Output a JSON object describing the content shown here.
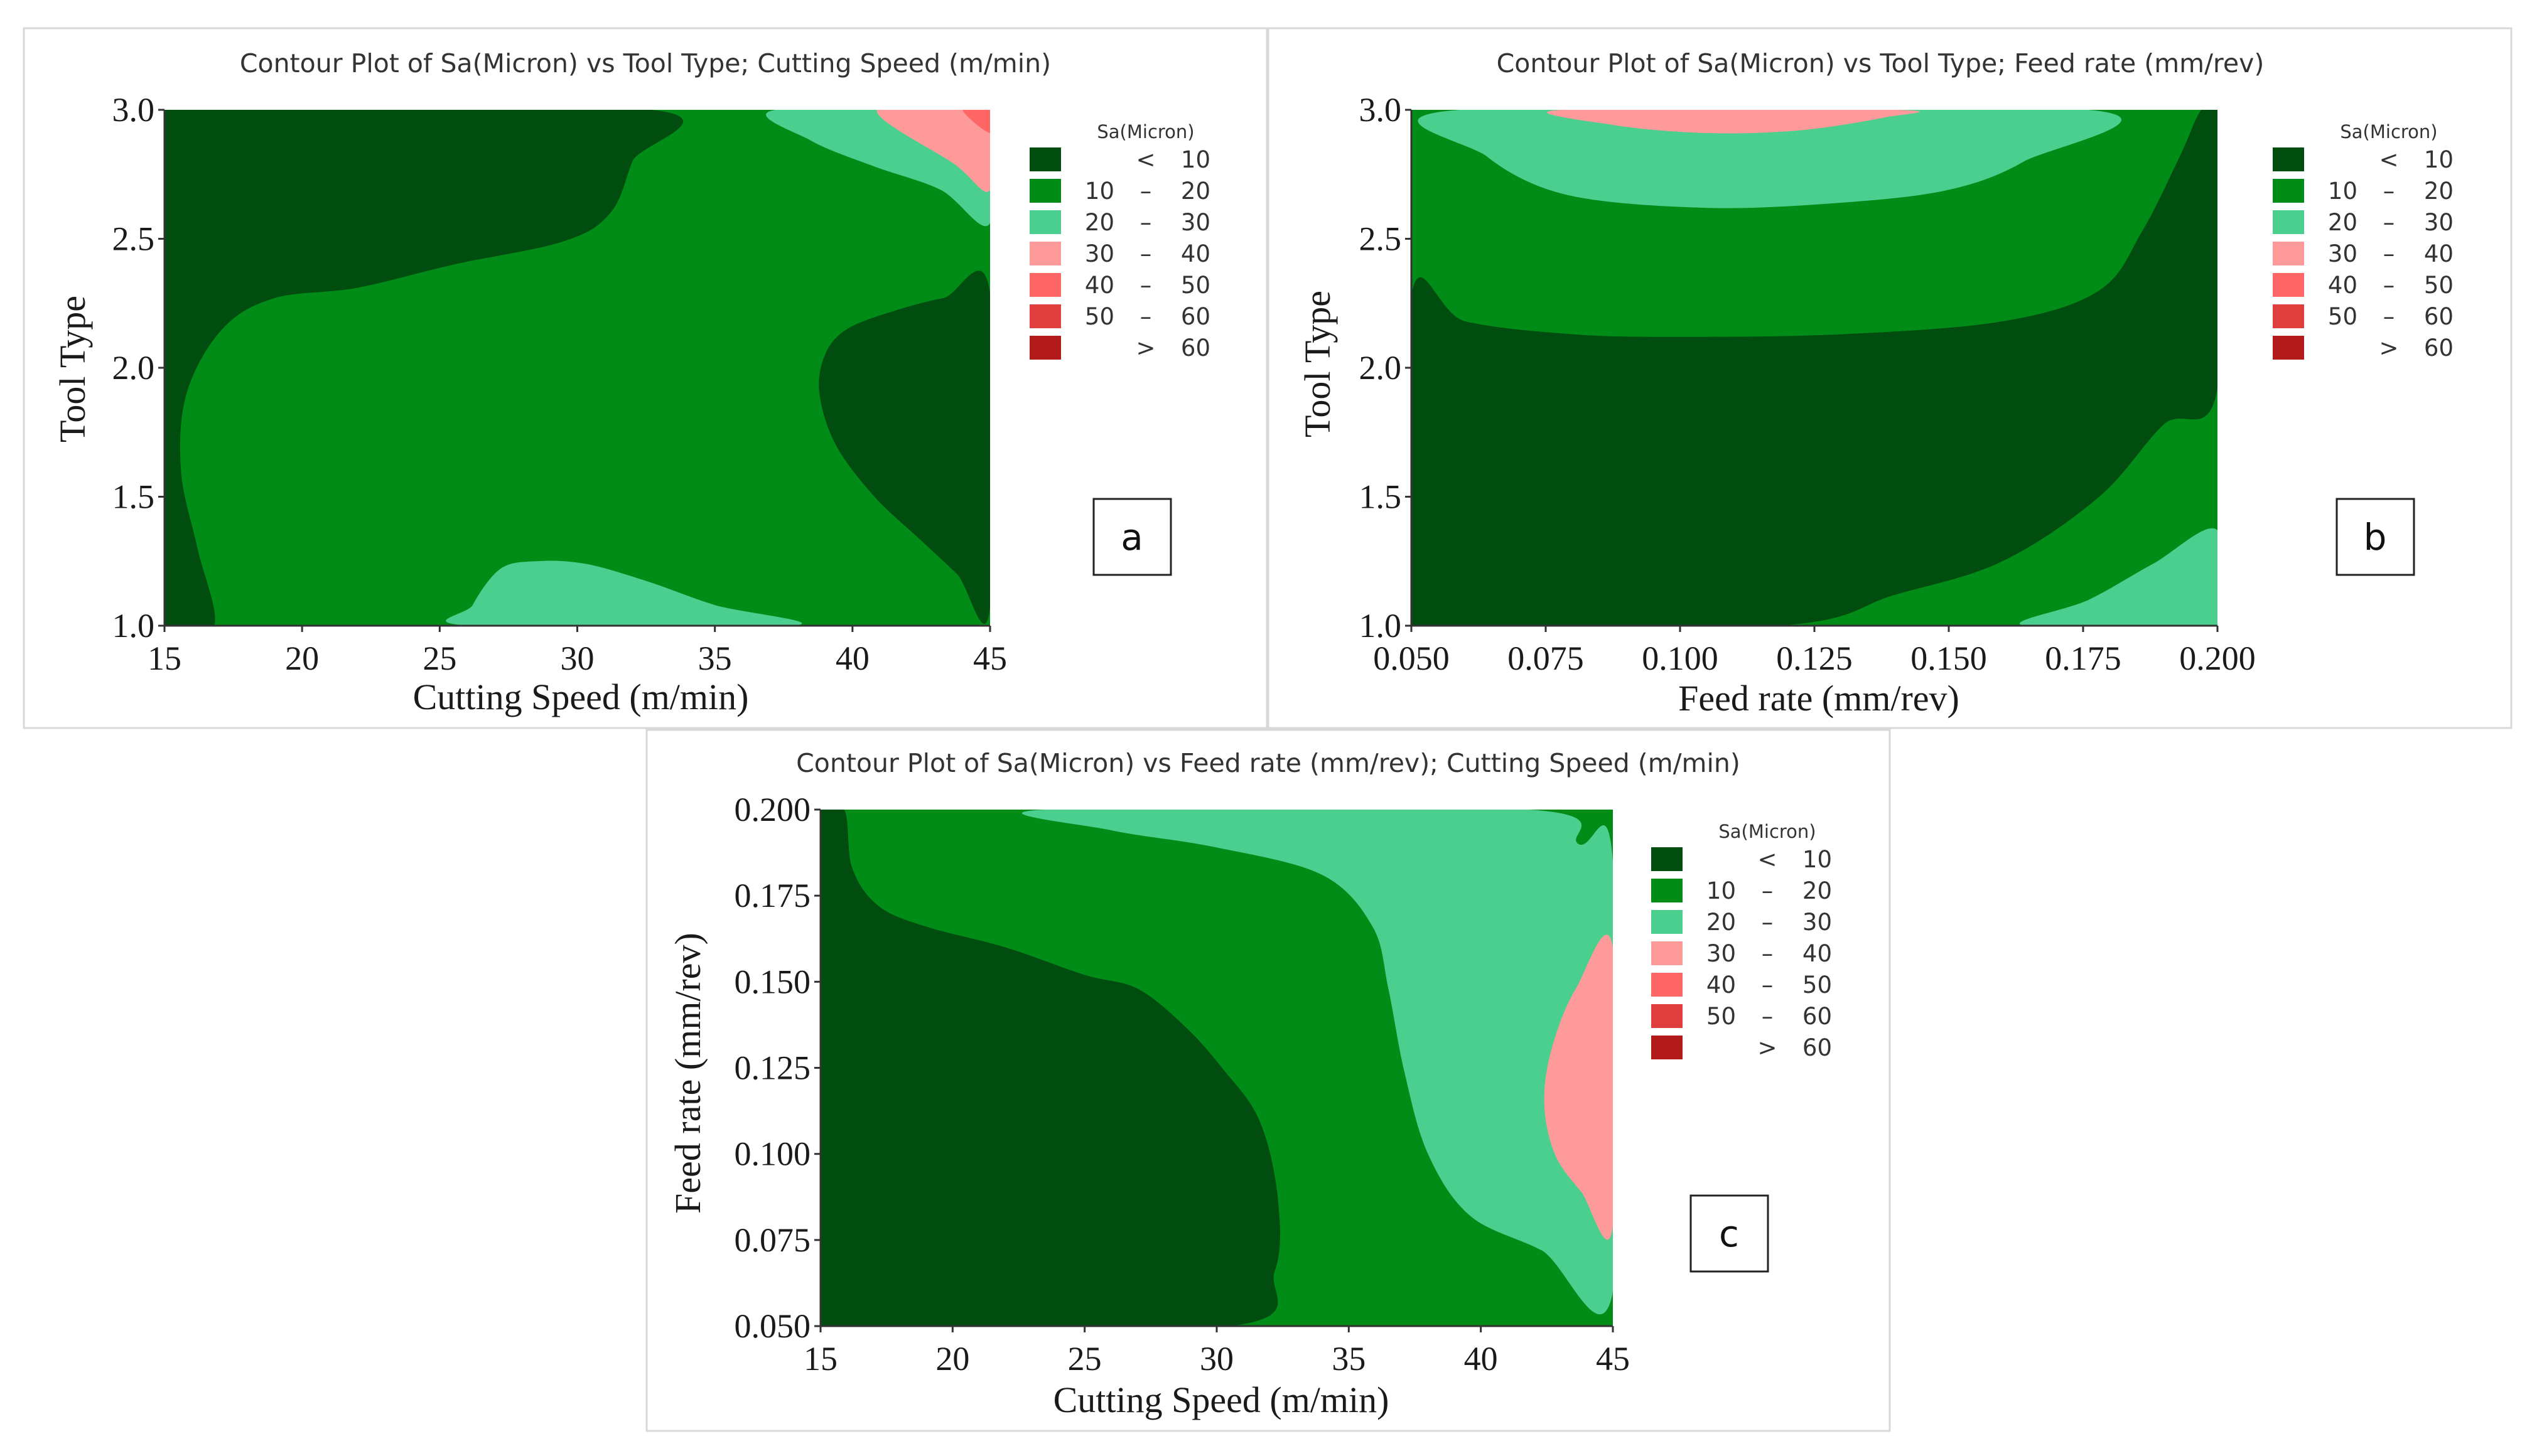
{
  "colors": {
    "lt10": "#004d0f",
    "c10_20": "#008c17",
    "c20_30": "#4bcf8e",
    "c30_40": "#ff9a9a",
    "c40_50": "#ff6666",
    "c50_60": "#e03d3d",
    "gt60": "#b31b1b"
  },
  "legend": {
    "title": "Sa(Micron)",
    "entries": [
      {
        "low": "",
        "sep": "<",
        "high": "10",
        "color": "#004d0f"
      },
      {
        "low": "10",
        "sep": "–",
        "high": "20",
        "color": "#008c17"
      },
      {
        "low": "20",
        "sep": "–",
        "high": "30",
        "color": "#4bcf8e"
      },
      {
        "low": "30",
        "sep": "–",
        "high": "40",
        "color": "#ff9a9a"
      },
      {
        "low": "40",
        "sep": "–",
        "high": "50",
        "color": "#ff6666"
      },
      {
        "low": "50",
        "sep": "–",
        "high": "60",
        "color": "#e03d3d"
      },
      {
        "low": "",
        "sep": ">",
        "high": "60",
        "color": "#b31b1b"
      }
    ]
  },
  "chart_data": [
    {
      "id": "a",
      "type": "contour",
      "title": "Contour Plot of Sa(Micron) vs Tool Type; Cutting Speed (m/min)",
      "xlabel": "Cutting Speed (m/min)",
      "ylabel": "Tool Type",
      "xlim": [
        15,
        45
      ],
      "ylim": [
        1.0,
        3.0
      ],
      "xticks": [
        "15",
        "20",
        "25",
        "30",
        "35",
        "40",
        "45"
      ],
      "yticks": [
        "1.0",
        "1.5",
        "2.0",
        "2.5",
        "3.0"
      ],
      "tag": "a",
      "background_level": "c10_20",
      "regions": [
        {
          "level": "lt10",
          "points": [
            [
              15,
              1.0
            ],
            [
              16.8,
              1.0
            ],
            [
              16.2,
              1.3
            ],
            [
              15.6,
              1.6
            ],
            [
              15.8,
              1.9
            ],
            [
              17.1,
              2.15
            ],
            [
              19,
              2.27
            ],
            [
              22,
              2.31
            ],
            [
              25.5,
              2.4
            ],
            [
              29.5,
              2.49
            ],
            [
              31.2,
              2.6
            ],
            [
              32,
              2.8
            ],
            [
              32.7,
              3.0
            ],
            [
              15,
              3.0
            ]
          ]
        },
        {
          "level": "lt10",
          "points": [
            [
              45,
              1.07
            ],
            [
              43.8,
              1.2
            ],
            [
              42.5,
              1.33
            ],
            [
              40.8,
              1.5
            ],
            [
              39.4,
              1.7
            ],
            [
              38.8,
              1.9
            ],
            [
              39,
              2.05
            ],
            [
              39.8,
              2.15
            ],
            [
              41.5,
              2.22
            ],
            [
              43.3,
              2.27
            ],
            [
              45,
              2.29
            ]
          ]
        },
        {
          "level": "c20_30",
          "points": [
            [
              26.1,
              1.0
            ],
            [
              26.2,
              1.08
            ],
            [
              27.2,
              1.22
            ],
            [
              28.5,
              1.25
            ],
            [
              30.3,
              1.24
            ],
            [
              32.6,
              1.17
            ],
            [
              35,
              1.08
            ],
            [
              37.8,
              1.0
            ]
          ]
        },
        {
          "level": "c20_30",
          "points": [
            [
              37.2,
              3.0
            ],
            [
              38.5,
              2.88
            ],
            [
              40.8,
              2.78
            ],
            [
              43.2,
              2.69
            ],
            [
              45,
              2.56
            ],
            [
              45,
              3.0
            ]
          ]
        },
        {
          "level": "c30_40",
          "points": [
            [
              40.9,
              3.0
            ],
            [
              43.7,
              2.79
            ],
            [
              45,
              2.69
            ],
            [
              45,
              3.0
            ]
          ]
        },
        {
          "level": "c40_50",
          "points": [
            [
              44,
              3.0
            ],
            [
              45,
              2.91
            ],
            [
              45,
              3.0
            ]
          ]
        }
      ]
    },
    {
      "id": "b",
      "type": "contour",
      "title": "Contour Plot of Sa(Micron) vs Tool Type; Feed rate (mm/rev)",
      "xlabel": "Feed rate (mm/rev)",
      "ylabel": "Tool Type",
      "xlim": [
        0.05,
        0.2
      ],
      "ylim": [
        1.0,
        3.0
      ],
      "xticks": [
        "0.050",
        "0.075",
        "0.100",
        "0.125",
        "0.150",
        "0.175",
        "0.200"
      ],
      "yticks": [
        "1.0",
        "1.5",
        "2.0",
        "2.5",
        "3.0"
      ],
      "tag": "b",
      "background_level": "c10_20",
      "regions": [
        {
          "level": "lt10",
          "points": [
            [
              0.05,
              1.0
            ],
            [
              0.118,
              1.0
            ],
            [
              0.14,
              1.12
            ],
            [
              0.16,
              1.25
            ],
            [
              0.178,
              1.5
            ],
            [
              0.19,
              1.78
            ],
            [
              0.2,
              1.92
            ],
            [
              0.2,
              3.0
            ],
            [
              0.197,
              3.0
            ],
            [
              0.193,
              2.82
            ],
            [
              0.186,
              2.53
            ],
            [
              0.178,
              2.3
            ],
            [
              0.16,
              2.18
            ],
            [
              0.13,
              2.13
            ],
            [
              0.1,
              2.12
            ],
            [
              0.08,
              2.13
            ],
            [
              0.06,
              2.18
            ],
            [
              0.05,
              2.28
            ]
          ]
        },
        {
          "level": "c20_30",
          "points": [
            [
              0.059,
              3.0
            ],
            [
              0.064,
              2.82
            ],
            [
              0.079,
              2.67
            ],
            [
              0.105,
              2.62
            ],
            [
              0.13,
              2.64
            ],
            [
              0.15,
              2.69
            ],
            [
              0.164,
              2.8
            ],
            [
              0.176,
              3.0
            ]
          ]
        },
        {
          "level": "c20_30",
          "points": [
            [
              0.2,
              1.0
            ],
            [
              0.2,
              1.37
            ],
            [
              0.188,
              1.24
            ],
            [
              0.176,
              1.1
            ],
            [
              0.164,
              1.0
            ]
          ]
        },
        {
          "level": "c30_40",
          "points": [
            [
              0.078,
              3.0
            ],
            [
              0.088,
              2.94
            ],
            [
              0.105,
              2.91
            ],
            [
              0.122,
              2.92
            ],
            [
              0.138,
              2.97
            ],
            [
              0.14,
              3.0
            ]
          ]
        }
      ]
    },
    {
      "id": "c",
      "type": "contour",
      "title": "Contour Plot of Sa(Micron) vs Feed rate (mm/rev); Cutting Speed (m/min)",
      "xlabel": "Cutting Speed (m/min)",
      "ylabel": "Feed rate (mm/rev)",
      "xlim": [
        15,
        45
      ],
      "ylim": [
        0.05,
        0.2
      ],
      "xticks": [
        "15",
        "20",
        "25",
        "30",
        "35",
        "40",
        "45"
      ],
      "yticks": [
        "0.050",
        "0.075",
        "0.100",
        "0.125",
        "0.150",
        "0.175",
        "0.200"
      ],
      "tag": "c",
      "background_level": "c10_20",
      "regions": [
        {
          "level": "lt10",
          "points": [
            [
              15,
              0.05
            ],
            [
              30.5,
              0.05
            ],
            [
              32.2,
              0.066
            ],
            [
              32.3,
              0.088
            ],
            [
              31.6,
              0.11
            ],
            [
              30.2,
              0.125
            ],
            [
              28.8,
              0.137
            ],
            [
              27,
              0.148
            ],
            [
              25,
              0.152
            ],
            [
              22,
              0.16
            ],
            [
              19,
              0.166
            ],
            [
              17.2,
              0.172
            ],
            [
              16.2,
              0.183
            ],
            [
              15.9,
              0.2
            ],
            [
              15,
              0.2
            ]
          ]
        },
        {
          "level": "c20_30",
          "points": [
            [
              23.5,
              0.2
            ],
            [
              26,
              0.194
            ],
            [
              30,
              0.189
            ],
            [
              34,
              0.181
            ],
            [
              35.9,
              0.166
            ],
            [
              36.5,
              0.148
            ],
            [
              37.1,
              0.124
            ],
            [
              38,
              0.1
            ],
            [
              39.6,
              0.082
            ],
            [
              42.3,
              0.072
            ],
            [
              45,
              0.06
            ],
            [
              45,
              0.185
            ],
            [
              43.7,
              0.19
            ],
            [
              41.8,
              0.2
            ]
          ]
        },
        {
          "level": "c30_40",
          "points": [
            [
              45,
              0.079
            ],
            [
              43.8,
              0.089
            ],
            [
              42.8,
              0.1
            ],
            [
              42.4,
              0.115
            ],
            [
              42.7,
              0.131
            ],
            [
              43.6,
              0.148
            ],
            [
              45,
              0.16
            ]
          ]
        }
      ]
    }
  ]
}
